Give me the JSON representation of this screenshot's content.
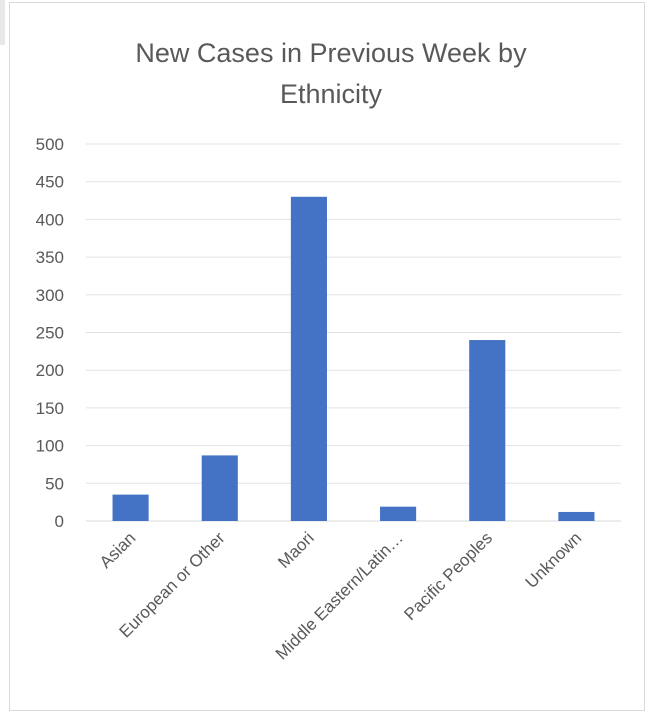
{
  "chart_data": {
    "type": "bar",
    "title_lines": [
      "New Cases in Previous Week by",
      "Ethnicity"
    ],
    "categories": [
      "Asian",
      "European or Other",
      "Maori",
      "Middle Eastern/Latin…",
      "Pacific Peoples",
      "Unknown"
    ],
    "values": [
      35,
      87,
      430,
      19,
      240,
      12
    ],
    "ylim": [
      0,
      500
    ],
    "yticks": [
      "0",
      "50",
      "100",
      "150",
      "200",
      "250",
      "300",
      "350",
      "400",
      "450",
      "500"
    ],
    "bar_color": "#4472c4",
    "grid": true,
    "legend": "none"
  }
}
